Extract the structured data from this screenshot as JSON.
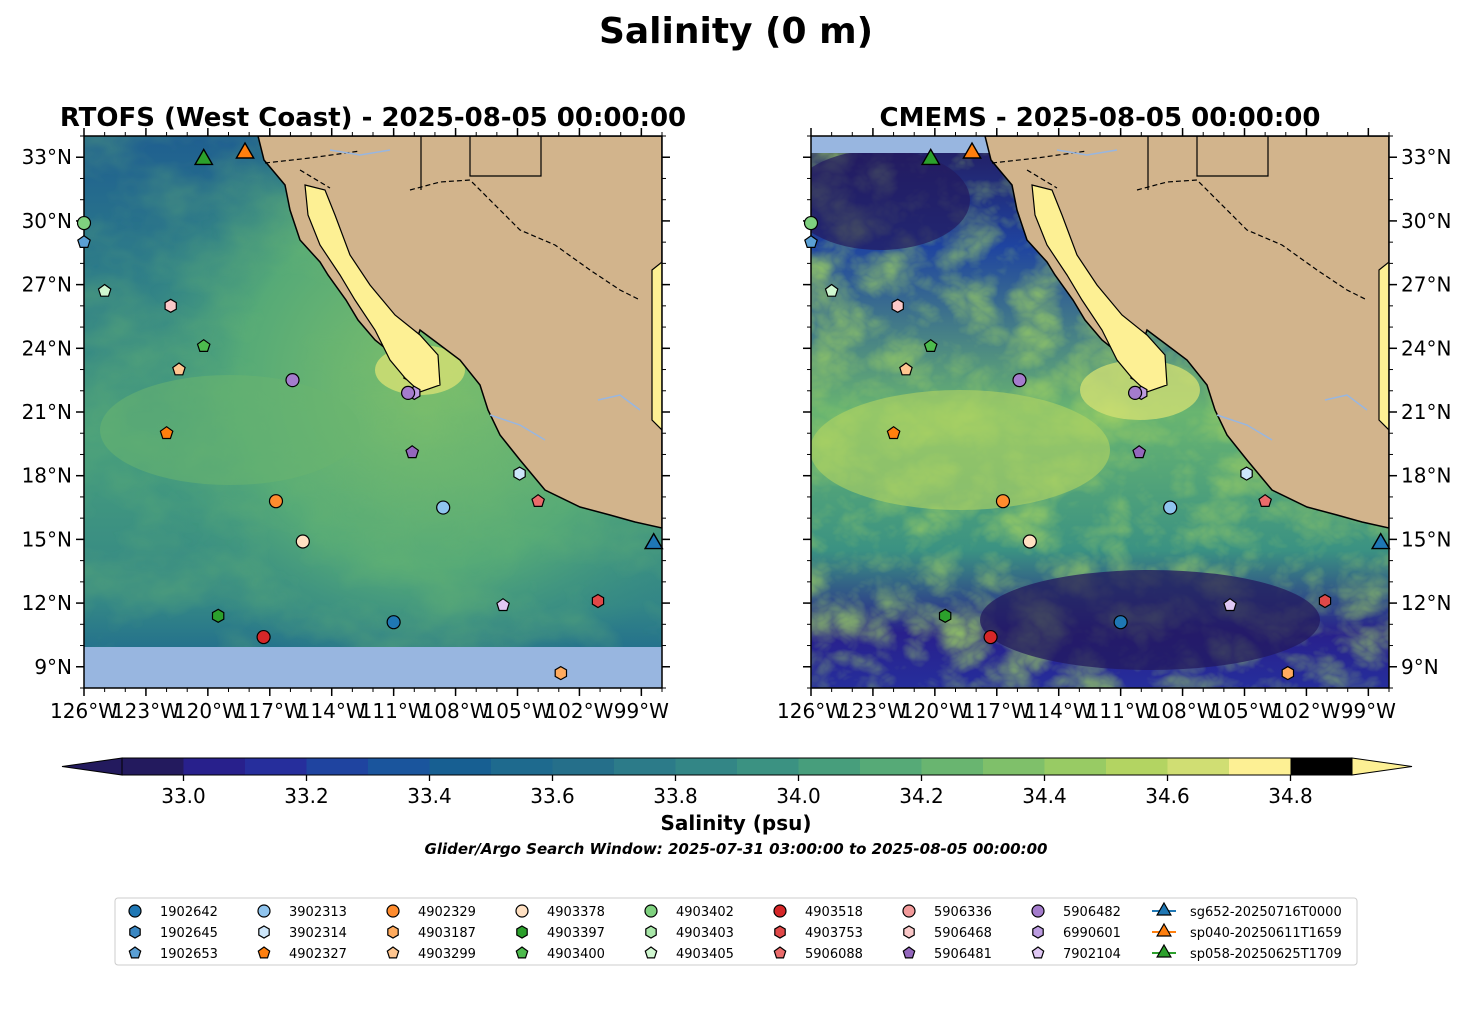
{
  "figure": {
    "suptitle": "Salinity (0 m)",
    "window_text": "Glider/Argo Search Window: 2025-07-31 03:00:00 to 2025-08-05 00:00:00"
  },
  "colors": {
    "land": "#d2b48c",
    "gulf": "#fdf094",
    "nodata": "#98b6e0",
    "marker_edge": "#000000"
  },
  "chart_data": [
    {
      "type": "heatmap",
      "panel": "left",
      "title": "RTOFS (West Coast) - 2025-08-05 00:00:00",
      "xlim": [
        -126,
        -98
      ],
      "ylim": [
        8,
        34
      ],
      "xticks": [
        "126°W",
        "123°W",
        "120°W",
        "117°W",
        "114°W",
        "111°W",
        "108°W",
        "105°W",
        "102°W",
        "99°W"
      ],
      "yticks": [
        "9°N",
        "12°N",
        "15°N",
        "18°N",
        "21°N",
        "24°N",
        "27°N",
        "30°N",
        "33°N"
      ],
      "ytick_side": "left",
      "no_data_below_lat": 10.2,
      "description_colors": "mostly 33.6-34.4 psu, fresher offshore north and south, saltier near Baja tip"
    },
    {
      "type": "heatmap",
      "panel": "right",
      "title": "CMEMS - 2025-08-05 00:00:00",
      "xlim": [
        -126,
        -98
      ],
      "ylim": [
        8,
        34
      ],
      "xticks": [
        "126°W",
        "123°W",
        "120°W",
        "117°W",
        "114°W",
        "111°W",
        "108°W",
        "105°W",
        "102°W",
        "99°W"
      ],
      "yticks": [
        "9°N",
        "12°N",
        "15°N",
        "18°N",
        "21°N",
        "24°N",
        "27°N",
        "30°N",
        "33°N"
      ],
      "ytick_side": "right",
      "no_data_above_lat": 33.0
    }
  ],
  "colorbar": {
    "label": "Salinity (psu)",
    "min": 32.9,
    "max": 34.9,
    "step": 0.1,
    "ticks": [
      "33.0",
      "33.2",
      "33.4",
      "33.6",
      "33.8",
      "34.0",
      "34.2",
      "34.4",
      "34.6",
      "34.8"
    ],
    "tick_values": [
      33.0,
      33.2,
      33.4,
      33.6,
      33.8,
      34.0,
      34.2,
      34.4,
      34.6,
      34.8
    ],
    "colors": [
      "#231a5e",
      "#28208c",
      "#262e9c",
      "#1f44a0",
      "#1a559d",
      "#175f92",
      "#1e6a8e",
      "#256f8a",
      "#2c7b89",
      "#338686",
      "#3b9282",
      "#479e7c",
      "#56aa77",
      "#69b570",
      "#7fc06a",
      "#98cb64",
      "#b3d462",
      "#d0de73",
      "#fdf094"
    ]
  },
  "stations": [
    {
      "id": "1902642",
      "shape": "circle",
      "color": "#1f77b4",
      "lon": null,
      "lat": null
    },
    {
      "id": "1902645",
      "shape": "hexagon",
      "color": "#3a87c2",
      "lon": null,
      "lat": null
    },
    {
      "id": "1902653",
      "shape": "pentagon",
      "color": "#5a9fd4",
      "lon": -126,
      "lat": 29.0
    },
    {
      "id": "3902313",
      "shape": "circle",
      "color": "#8fc4ee",
      "lon": -108.6,
      "lat": 16.5
    },
    {
      "id": "3902314",
      "shape": "hexagon",
      "color": "#cde6fa",
      "lon": -104.9,
      "lat": 18.1
    },
    {
      "id": "4902327",
      "shape": "pentagon",
      "color": "#ff7f0e",
      "lon": -122.0,
      "lat": 20.0
    },
    {
      "id": "4902329",
      "shape": "circle",
      "color": "#ff8c2e",
      "lon": -116.7,
      "lat": 16.8
    },
    {
      "id": "4903187",
      "shape": "hexagon",
      "color": "#ffab5e",
      "lon": -102.9,
      "lat": 8.7
    },
    {
      "id": "4903299",
      "shape": "pentagon",
      "color": "#ffc690",
      "lon": -121.4,
      "lat": 23.0
    },
    {
      "id": "4903378",
      "shape": "circle",
      "color": "#ffe0c2",
      "lon": -115.4,
      "lat": 14.9
    },
    {
      "id": "4903397",
      "shape": "hexagon",
      "color": "#2ca02c",
      "lon": -119.5,
      "lat": 11.4
    },
    {
      "id": "4903400",
      "shape": "pentagon",
      "color": "#4dbb4d",
      "lon": -120.2,
      "lat": 24.1
    },
    {
      "id": "4903402",
      "shape": "circle",
      "color": "#7fd17f",
      "lon": -126,
      "lat": 29.9
    },
    {
      "id": "4903403",
      "shape": "hexagon",
      "color": "#a8e6a8",
      "lon": null,
      "lat": null
    },
    {
      "id": "4903405",
      "shape": "pentagon",
      "color": "#d0f7d0",
      "lon": -125.0,
      "lat": 26.7
    },
    {
      "id": "4903518",
      "shape": "circle",
      "color": "#d62728",
      "lon": -117.3,
      "lat": 10.4
    },
    {
      "id": "4903753",
      "shape": "hexagon",
      "color": "#e04848",
      "lon": -101.1,
      "lat": 12.1
    },
    {
      "id": "5906088",
      "shape": "pentagon",
      "color": "#ea6b6b",
      "lon": -104.0,
      "lat": 16.8
    },
    {
      "id": "5906336",
      "shape": "circle",
      "color": "#f29a9a",
      "lon": null,
      "lat": null
    },
    {
      "id": "5906468",
      "shape": "hexagon",
      "color": "#fac8c8",
      "lon": -121.8,
      "lat": 26.0
    },
    {
      "id": "5906481",
      "shape": "pentagon",
      "color": "#9467bd",
      "lon": -110.1,
      "lat": 19.1
    },
    {
      "id": "5906482",
      "shape": "circle",
      "color": "#a47ccc",
      "lon": -115.9,
      "lat": 22.5
    },
    {
      "id": "6990601",
      "shape": "hexagon",
      "color": "#bc9ce0",
      "lon": -110.0,
      "lat": 21.9
    },
    {
      "id": "7902104",
      "shape": "pentagon",
      "color": "#e0c8f4",
      "lon": -105.7,
      "lat": 11.9
    },
    {
      "id": "7902104b",
      "shape": "circle",
      "color": "#a47ccc",
      "lon": -110.3,
      "lat": 21.9
    },
    {
      "id": "1902642b",
      "shape": "circle",
      "color": "#1f77b4",
      "lon": -111.0,
      "lat": 11.1
    }
  ],
  "gliders": [
    {
      "id": "sg652-20250716T0000",
      "color": "#1f77b4",
      "lon": -98.4,
      "lat": 14.8
    },
    {
      "id": "sp040-20250611T1659",
      "color": "#ff7f0e",
      "lon": -118.2,
      "lat": 33.2
    },
    {
      "id": "sp058-20250625T1709",
      "color": "#2ca02c",
      "lon": -120.2,
      "lat": 32.9
    }
  ],
  "legend": {
    "columns": [
      [
        "1902642",
        "1902645",
        "1902653"
      ],
      [
        "3902313",
        "3902314",
        "4902327"
      ],
      [
        "4902329",
        "4903187",
        "4903299"
      ],
      [
        "4903378",
        "4903397",
        "4903400"
      ],
      [
        "4903402",
        "4903403",
        "4903405"
      ],
      [
        "4903518",
        "4903753",
        "5906088"
      ],
      [
        "5906336",
        "5906468",
        "5906481"
      ],
      [
        "5906482",
        "6990601",
        "7902104"
      ],
      [
        "sg652-20250716T0000",
        "sp040-20250611T1659",
        "sp058-20250625T1709"
      ]
    ]
  }
}
